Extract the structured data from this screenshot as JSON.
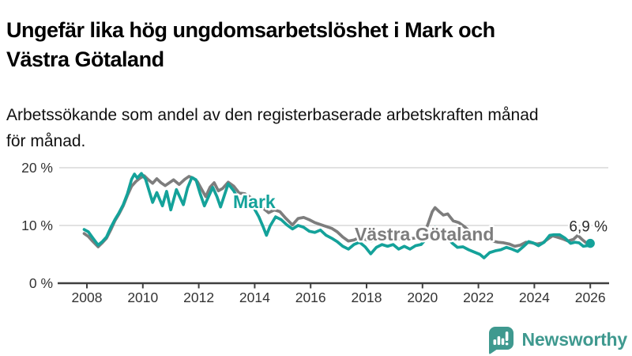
{
  "header": {
    "title": "Ungefär lika hög ungdomsarbetslöshet i Mark och Västra Götaland",
    "subtitle": "Arbetssökande som andel av den registerbaserade arbetskraften månad för månad."
  },
  "chart_data": {
    "type": "line",
    "title": "Ungefär lika hög ungdomsarbetslöshet i Mark och Västra Götaland",
    "subtitle": "Arbetssökande som andel av den registerbaserade arbetskraften månad för månad.",
    "unit": "percent of registered labour force",
    "grid": "horizontal",
    "legend_position": "inline-labels",
    "ylim": [
      0,
      22
    ],
    "xlim": [
      2007.85,
      2026.3
    ],
    "y_axis": {
      "ticks": [
        {
          "v": 0,
          "label": "0 %"
        },
        {
          "v": 10,
          "label": "10 %"
        },
        {
          "v": 20,
          "label": "20 %"
        }
      ]
    },
    "x_axis": {
      "ticks": [
        {
          "v": 2008,
          "label": "2008"
        },
        {
          "v": 2010,
          "label": "2010"
        },
        {
          "v": 2012,
          "label": "2012"
        },
        {
          "v": 2014,
          "label": "2014"
        },
        {
          "v": 2016,
          "label": "2016"
        },
        {
          "v": 2018,
          "label": "2018"
        },
        {
          "v": 2020,
          "label": "2020"
        },
        {
          "v": 2022,
          "label": "2022"
        },
        {
          "v": 2024,
          "label": "2024"
        },
        {
          "v": 2026,
          "label": "2026"
        }
      ]
    },
    "series": [
      {
        "name": "Mark",
        "color": "#14a29a",
        "points": [
          [
            2007.9,
            9.3
          ],
          [
            2008.05,
            8.9
          ],
          [
            2008.2,
            7.9
          ],
          [
            2008.4,
            6.6
          ],
          [
            2008.55,
            7.2
          ],
          [
            2008.7,
            8.0
          ],
          [
            2008.85,
            9.6
          ],
          [
            2009.0,
            11.0
          ],
          [
            2009.15,
            12.2
          ],
          [
            2009.3,
            13.6
          ],
          [
            2009.45,
            15.5
          ],
          [
            2009.6,
            18.0
          ],
          [
            2009.7,
            18.9
          ],
          [
            2009.8,
            18.2
          ],
          [
            2009.95,
            19.0
          ],
          [
            2010.1,
            18.0
          ],
          [
            2010.35,
            14.0
          ],
          [
            2010.5,
            15.7
          ],
          [
            2010.7,
            13.4
          ],
          [
            2010.85,
            15.9
          ],
          [
            2011.0,
            12.7
          ],
          [
            2011.2,
            16.2
          ],
          [
            2011.45,
            13.6
          ],
          [
            2011.6,
            16.5
          ],
          [
            2011.75,
            18.3
          ],
          [
            2011.9,
            17.9
          ],
          [
            2012.05,
            15.5
          ],
          [
            2012.2,
            13.4
          ],
          [
            2012.35,
            15.0
          ],
          [
            2012.5,
            16.6
          ],
          [
            2012.65,
            15.0
          ],
          [
            2012.78,
            13.2
          ],
          [
            2012.9,
            15.0
          ],
          [
            2013.05,
            17.2
          ],
          [
            2013.25,
            16.0
          ],
          [
            2013.45,
            14.3
          ],
          [
            2013.65,
            15.2
          ],
          [
            2013.85,
            14.0
          ],
          [
            2014.0,
            12.8
          ],
          [
            2014.15,
            11.5
          ],
          [
            2014.3,
            9.8
          ],
          [
            2014.42,
            8.3
          ],
          [
            2014.55,
            9.9
          ],
          [
            2014.75,
            11.5
          ],
          [
            2014.95,
            11.0
          ],
          [
            2015.15,
            10.1
          ],
          [
            2015.35,
            9.4
          ],
          [
            2015.55,
            10.0
          ],
          [
            2015.75,
            9.7
          ],
          [
            2015.95,
            9.0
          ],
          [
            2016.15,
            8.8
          ],
          [
            2016.35,
            9.2
          ],
          [
            2016.55,
            8.3
          ],
          [
            2016.75,
            7.8
          ],
          [
            2016.95,
            7.2
          ],
          [
            2017.15,
            6.4
          ],
          [
            2017.35,
            5.9
          ],
          [
            2017.55,
            6.7
          ],
          [
            2017.75,
            7.1
          ],
          [
            2017.95,
            6.3
          ],
          [
            2018.15,
            5.1
          ],
          [
            2018.35,
            6.2
          ],
          [
            2018.55,
            6.7
          ],
          [
            2018.75,
            6.4
          ],
          [
            2018.95,
            6.7
          ],
          [
            2019.15,
            5.9
          ],
          [
            2019.35,
            6.4
          ],
          [
            2019.55,
            5.9
          ],
          [
            2019.75,
            6.5
          ],
          [
            2019.95,
            6.7
          ],
          [
            2020.15,
            7.8
          ],
          [
            2020.3,
            9.0
          ],
          [
            2020.45,
            9.7
          ],
          [
            2020.65,
            9.1
          ],
          [
            2020.85,
            8.2
          ],
          [
            2021.05,
            7.0
          ],
          [
            2021.25,
            6.2
          ],
          [
            2021.45,
            6.3
          ],
          [
            2021.65,
            5.8
          ],
          [
            2021.85,
            5.4
          ],
          [
            2022.05,
            5.0
          ],
          [
            2022.2,
            4.4
          ],
          [
            2022.4,
            5.3
          ],
          [
            2022.6,
            5.6
          ],
          [
            2022.8,
            5.8
          ],
          [
            2023.0,
            6.2
          ],
          [
            2023.2,
            5.9
          ],
          [
            2023.4,
            5.5
          ],
          [
            2023.6,
            6.3
          ],
          [
            2023.8,
            7.2
          ],
          [
            2023.95,
            7.0
          ],
          [
            2024.15,
            6.5
          ],
          [
            2024.35,
            7.1
          ],
          [
            2024.55,
            8.3
          ],
          [
            2024.7,
            8.4
          ],
          [
            2024.9,
            8.4
          ],
          [
            2025.1,
            7.8
          ],
          [
            2025.3,
            6.9
          ],
          [
            2025.45,
            7.1
          ],
          [
            2025.6,
            7.0
          ],
          [
            2025.75,
            6.4
          ],
          [
            2025.9,
            6.5
          ],
          [
            2026.0,
            6.9
          ]
        ],
        "last_value_label": "6,9 %"
      },
      {
        "name": "Västra Götaland",
        "color": "#7d7d7d",
        "points": [
          [
            2007.9,
            8.6
          ],
          [
            2008.05,
            8.1
          ],
          [
            2008.2,
            7.3
          ],
          [
            2008.4,
            6.3
          ],
          [
            2008.55,
            7.0
          ],
          [
            2008.7,
            7.8
          ],
          [
            2008.85,
            9.2
          ],
          [
            2009.0,
            10.8
          ],
          [
            2009.15,
            12.0
          ],
          [
            2009.3,
            13.4
          ],
          [
            2009.45,
            15.2
          ],
          [
            2009.6,
            16.8
          ],
          [
            2009.75,
            17.6
          ],
          [
            2009.9,
            18.2
          ],
          [
            2010.05,
            18.6
          ],
          [
            2010.2,
            17.9
          ],
          [
            2010.35,
            17.3
          ],
          [
            2010.5,
            18.1
          ],
          [
            2010.65,
            17.4
          ],
          [
            2010.8,
            16.9
          ],
          [
            2010.95,
            17.4
          ],
          [
            2011.1,
            17.9
          ],
          [
            2011.3,
            17.1
          ],
          [
            2011.5,
            18.0
          ],
          [
            2011.65,
            18.5
          ],
          [
            2011.8,
            18.2
          ],
          [
            2011.95,
            17.6
          ],
          [
            2012.1,
            16.3
          ],
          [
            2012.25,
            15.0
          ],
          [
            2012.4,
            16.6
          ],
          [
            2012.55,
            17.4
          ],
          [
            2012.7,
            16.0
          ],
          [
            2012.85,
            16.4
          ],
          [
            2013.05,
            17.5
          ],
          [
            2013.25,
            16.8
          ],
          [
            2013.45,
            15.6
          ],
          [
            2013.65,
            15.5
          ],
          [
            2013.9,
            14.7
          ],
          [
            2014.1,
            13.6
          ],
          [
            2014.3,
            13.0
          ],
          [
            2014.5,
            12.2
          ],
          [
            2014.7,
            12.7
          ],
          [
            2014.9,
            12.4
          ],
          [
            2015.1,
            11.3
          ],
          [
            2015.35,
            10.1
          ],
          [
            2015.55,
            11.2
          ],
          [
            2015.75,
            11.4
          ],
          [
            2015.95,
            11.0
          ],
          [
            2016.15,
            10.5
          ],
          [
            2016.45,
            10.0
          ],
          [
            2016.75,
            9.5
          ],
          [
            2016.95,
            8.9
          ],
          [
            2017.15,
            8.0
          ],
          [
            2017.35,
            7.3
          ],
          [
            2017.55,
            7.5
          ],
          [
            2017.75,
            7.9
          ],
          [
            2017.95,
            7.6
          ],
          [
            2018.15,
            7.3
          ],
          [
            2018.45,
            7.7
          ],
          [
            2018.75,
            8.0
          ],
          [
            2018.95,
            7.8
          ],
          [
            2019.25,
            7.6
          ],
          [
            2019.55,
            7.7
          ],
          [
            2019.85,
            7.9
          ],
          [
            2020.05,
            8.4
          ],
          [
            2020.2,
            10.3
          ],
          [
            2020.35,
            12.4
          ],
          [
            2020.45,
            13.1
          ],
          [
            2020.6,
            12.4
          ],
          [
            2020.75,
            11.8
          ],
          [
            2020.9,
            12.0
          ],
          [
            2021.1,
            10.8
          ],
          [
            2021.3,
            10.5
          ],
          [
            2021.5,
            9.8
          ],
          [
            2021.7,
            8.9
          ],
          [
            2021.9,
            8.4
          ],
          [
            2022.1,
            7.9
          ],
          [
            2022.3,
            7.5
          ],
          [
            2022.5,
            7.3
          ],
          [
            2022.7,
            7.1
          ],
          [
            2022.9,
            7.0
          ],
          [
            2023.1,
            6.8
          ],
          [
            2023.3,
            6.4
          ],
          [
            2023.5,
            6.6
          ],
          [
            2023.7,
            7.1
          ],
          [
            2023.9,
            7.0
          ],
          [
            2024.1,
            6.8
          ],
          [
            2024.3,
            7.0
          ],
          [
            2024.5,
            7.7
          ],
          [
            2024.65,
            8.2
          ],
          [
            2024.8,
            8.0
          ],
          [
            2025.0,
            7.7
          ],
          [
            2025.2,
            7.3
          ],
          [
            2025.4,
            7.6
          ],
          [
            2025.55,
            8.3
          ],
          [
            2025.7,
            7.6
          ],
          [
            2025.85,
            7.0
          ],
          [
            2026.0,
            6.8
          ]
        ]
      }
    ],
    "end_annotation": {
      "text": "6,9 %",
      "series": "Mark"
    }
  },
  "colors": {
    "mark_line": "#14a29a",
    "vastra_gotaland_line": "#7d7d7d",
    "axis": "#3f3f3f",
    "grid": "#d8d8d8",
    "brand_teal": "#3f998f"
  },
  "footer": {
    "brand": "Newsworthy"
  }
}
